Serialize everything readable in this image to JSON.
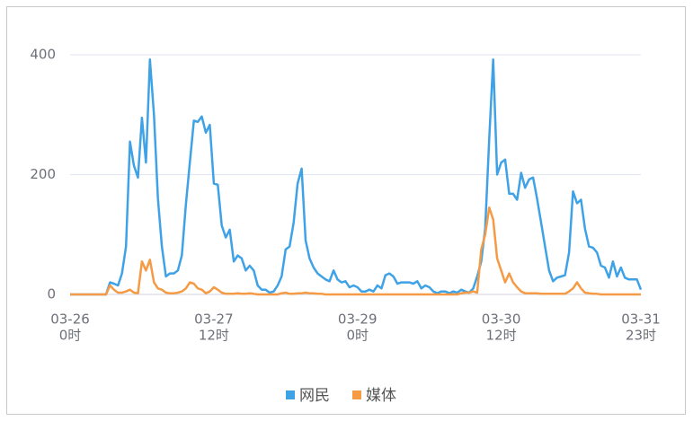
{
  "chart_data": {
    "type": "line",
    "categories": [
      [
        "03-26",
        "0时"
      ],
      null,
      null,
      null,
      null,
      null,
      null,
      null,
      null,
      null,
      null,
      null,
      null,
      null,
      null,
      null,
      null,
      null,
      null,
      null,
      null,
      null,
      null,
      null,
      null,
      null,
      null,
      null,
      null,
      null,
      null,
      null,
      null,
      null,
      null,
      null,
      [
        "03-27",
        "12时"
      ],
      null,
      null,
      null,
      null,
      null,
      null,
      null,
      null,
      null,
      null,
      null,
      null,
      null,
      null,
      null,
      null,
      null,
      null,
      null,
      null,
      null,
      null,
      null,
      null,
      null,
      null,
      null,
      null,
      null,
      null,
      null,
      null,
      null,
      null,
      null,
      [
        "03-29",
        "0时"
      ],
      null,
      null,
      null,
      null,
      null,
      null,
      null,
      null,
      null,
      null,
      null,
      null,
      null,
      null,
      null,
      null,
      null,
      null,
      null,
      null,
      null,
      null,
      null,
      null,
      null,
      null,
      null,
      null,
      null,
      null,
      null,
      null,
      null,
      null,
      null,
      [
        "03-30",
        "12时"
      ],
      null,
      null,
      null,
      null,
      null,
      null,
      null,
      null,
      null,
      null,
      null,
      null,
      null,
      null,
      null,
      null,
      null,
      null,
      null,
      null,
      null,
      null,
      null,
      null,
      null,
      null,
      null,
      null,
      null,
      null,
      null,
      null,
      null,
      null,
      [
        "03-31",
        "23时"
      ]
    ],
    "series": [
      {
        "name": "网民",
        "color": "#3fa2e6",
        "values": [
          0,
          0,
          0,
          0,
          0,
          0,
          0,
          0,
          0,
          0,
          20,
          18,
          15,
          35,
          80,
          255,
          215,
          195,
          295,
          220,
          392,
          300,
          160,
          80,
          30,
          35,
          35,
          40,
          65,
          150,
          220,
          290,
          288,
          297,
          270,
          283,
          185,
          183,
          115,
          95,
          108,
          55,
          65,
          60,
          40,
          48,
          40,
          15,
          8,
          8,
          3,
          5,
          15,
          30,
          75,
          80,
          120,
          185,
          210,
          90,
          60,
          45,
          35,
          30,
          25,
          22,
          40,
          25,
          20,
          22,
          12,
          15,
          12,
          5,
          5,
          8,
          5,
          15,
          10,
          32,
          35,
          30,
          18,
          20,
          20,
          20,
          18,
          22,
          10,
          15,
          12,
          5,
          2,
          5,
          5,
          2,
          5,
          3,
          8,
          5,
          3,
          10,
          30,
          55,
          110,
          260,
          392,
          200,
          220,
          225,
          168,
          168,
          158,
          203,
          178,
          192,
          195,
          160,
          120,
          80,
          40,
          22,
          28,
          30,
          32,
          70,
          172,
          152,
          158,
          110,
          80,
          78,
          70,
          48,
          45,
          28,
          55,
          30,
          45,
          28,
          25,
          25,
          25,
          8
        ]
      },
      {
        "name": "媒体",
        "color": "#f59a45",
        "values": [
          0,
          0,
          0,
          0,
          0,
          0,
          0,
          0,
          0,
          0,
          15,
          8,
          3,
          3,
          5,
          8,
          3,
          2,
          55,
          40,
          58,
          20,
          10,
          8,
          3,
          2,
          2,
          3,
          5,
          10,
          20,
          18,
          10,
          8,
          2,
          5,
          12,
          8,
          3,
          1,
          1,
          1,
          2,
          1,
          1,
          2,
          1,
          0,
          0,
          0,
          0,
          0,
          0,
          2,
          3,
          1,
          1,
          2,
          2,
          3,
          2,
          2,
          1,
          1,
          0,
          0,
          0,
          0,
          0,
          0,
          0,
          0,
          0,
          0,
          0,
          0,
          0,
          0,
          0,
          0,
          0,
          0,
          0,
          0,
          0,
          0,
          0,
          0,
          0,
          0,
          0,
          0,
          0,
          0,
          0,
          0,
          0,
          0,
          2,
          3,
          3,
          5,
          3,
          75,
          100,
          145,
          125,
          60,
          40,
          20,
          35,
          20,
          12,
          5,
          2,
          2,
          2,
          2,
          1,
          1,
          1,
          1,
          1,
          1,
          1,
          5,
          10,
          20,
          10,
          3,
          2,
          1,
          1,
          0,
          0,
          0,
          0,
          0,
          0,
          0,
          0,
          0,
          0,
          0
        ]
      }
    ],
    "ylim": [
      0,
      400
    ],
    "yticks": [
      0,
      200,
      400
    ],
    "grid": true,
    "legend": "bottom"
  }
}
